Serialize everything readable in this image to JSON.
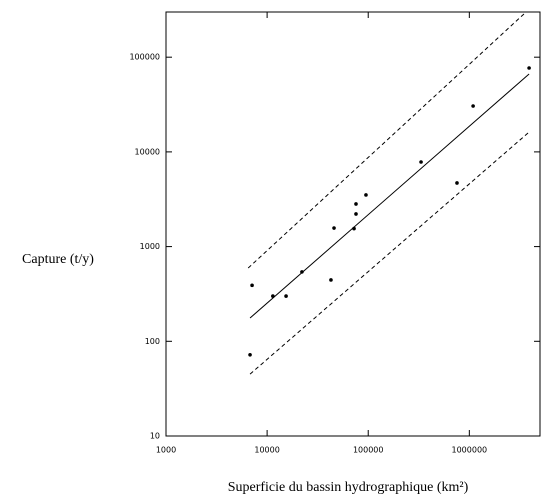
{
  "chart_data": {
    "type": "scatter",
    "x_label": "Superficie du bassin hydrographique (km²)",
    "y_label": "Capture (t/y)",
    "xscale": "log",
    "yscale": "log",
    "xlim": [
      1000,
      5000000
    ],
    "ylim": [
      10,
      300000
    ],
    "xticks": [
      1000,
      10000,
      100000,
      1000000
    ],
    "yticks": [
      10,
      100,
      1000,
      10000,
      100000
    ],
    "color": "#000000",
    "x": [
      6780,
      7100,
      11400,
      15400,
      22100,
      42800,
      45900,
      72400,
      75700,
      75700,
      95000,
      333000,
      755000,
      1090000,
      3900000
    ],
    "y": [
      72,
      390,
      300,
      300,
      540,
      444,
      1570,
      1550,
      2820,
      2210,
      3510,
      7820,
      4700,
      30500,
      76900
    ],
    "lines": [
      {
        "x": [
          6780,
          3900000
        ],
        "y": [
          176,
          66500
        ],
        "dashed": false
      },
      {
        "x": [
          6500,
          3470000
        ],
        "y": [
          594,
          286000
        ],
        "dashed": true
      },
      {
        "x": [
          6780,
          3900000
        ],
        "y": [
          45,
          16200
        ],
        "dashed": true
      }
    ]
  }
}
